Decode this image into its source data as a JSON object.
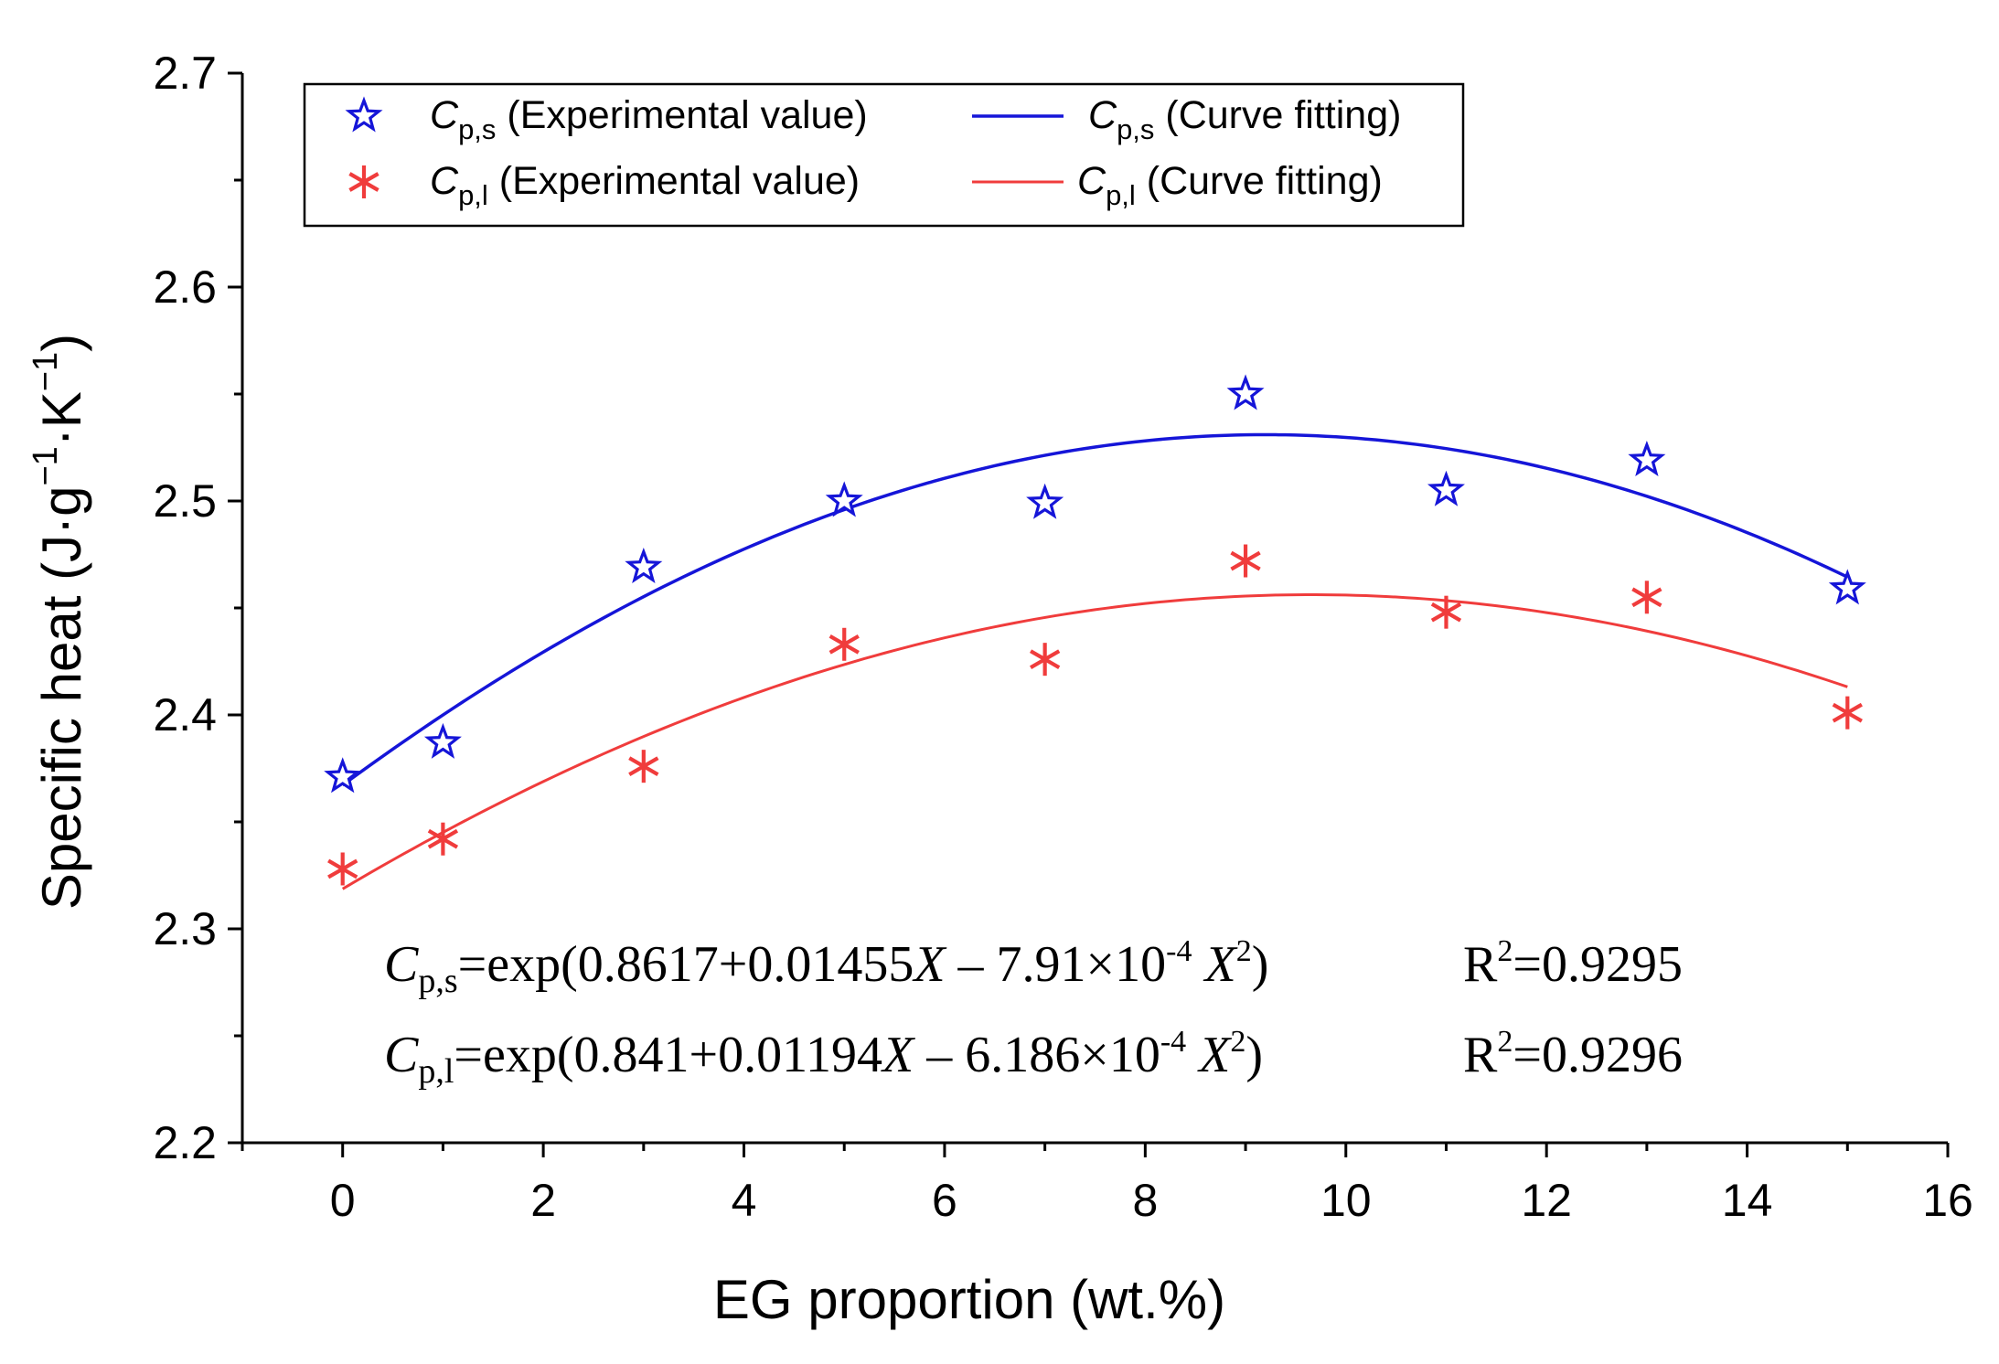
{
  "chart_data": {
    "type": "scatter",
    "xlabel": "EG proportion (wt.%)",
    "ylabel_main": "Specific heat (J·g",
    "ylabel_unit": "·K",
    "ylabel_exp": "−1",
    "ylabel_close": ")",
    "xlim": [
      -1,
      16
    ],
    "ylim": [
      2.2,
      2.7
    ],
    "xticks": [
      0,
      2,
      4,
      6,
      8,
      10,
      12,
      14,
      16
    ],
    "yticks": [
      2.2,
      2.3,
      2.4,
      2.5,
      2.6,
      2.7
    ],
    "xtick_labels": [
      "0",
      "2",
      "4",
      "6",
      "8",
      "10",
      "12",
      "14",
      "16"
    ],
    "ytick_labels": [
      "2.2",
      "2.3",
      "2.4",
      "2.5",
      "2.6",
      "2.7"
    ],
    "series": [
      {
        "name": "Cp,s (Experimental value)",
        "kind": "scatter",
        "marker": "star",
        "color": "#1515d8",
        "x": [
          0,
          1,
          3,
          5,
          7,
          9,
          11,
          13,
          15
        ],
        "y": [
          2.371,
          2.387,
          2.469,
          2.5,
          2.499,
          2.55,
          2.505,
          2.519,
          2.459
        ]
      },
      {
        "name": "Cp,l (Experimental value)",
        "kind": "scatter",
        "marker": "asterisk",
        "color": "#f03c3c",
        "x": [
          0,
          1,
          3,
          5,
          7,
          9,
          11,
          13,
          15
        ],
        "y": [
          2.328,
          2.342,
          2.376,
          2.433,
          2.426,
          2.472,
          2.448,
          2.455,
          2.401
        ]
      },
      {
        "name": "Cp,s (Curve fitting)",
        "kind": "fit",
        "color": "#1515d8",
        "coefficients": [
          0.8617,
          0.01455,
          -0.000791
        ],
        "x_range": [
          0,
          15
        ]
      },
      {
        "name": "Cp,l (Curve fitting)",
        "kind": "fit",
        "color": "#f03c3c",
        "coefficients": [
          0.841,
          0.01194,
          -0.0006186
        ],
        "x_range": [
          0,
          15
        ]
      }
    ],
    "legend": {
      "placement": "top-left",
      "items": [
        {
          "sym": "C",
          "sub": "p,s",
          "text": " (Experimental value)"
        },
        {
          "sym": "C",
          "sub": "p,s",
          "text": " (Curve fitting)"
        },
        {
          "sym": "C",
          "sub": "p,l",
          "text": " (Experimental value)"
        },
        {
          "sym": "C",
          "sub": "p,l",
          "text": " (Curve fitting)"
        }
      ]
    },
    "annotations": [
      {
        "sym": "C",
        "sub": "p,s",
        "eq_a": "=exp(0.8617+0.01455",
        "var1": "X",
        "eq_b": " – 7.91×10",
        "exp1": "-4",
        "var2": " X",
        "exp2": "2",
        "eq_c": ")",
        "r": "R",
        "rexp": "2",
        "rval": "=0.9295"
      },
      {
        "sym": "C",
        "sub": "p,l",
        "eq_a": "=exp(0.841+0.01194",
        "var1": "X",
        "eq_b": " – 6.186×10",
        "exp1": "-4",
        "var2": " X",
        "exp2": "2",
        "eq_c": ")",
        "r": "R",
        "rexp": "2",
        "rval": "=0.9296"
      }
    ]
  }
}
